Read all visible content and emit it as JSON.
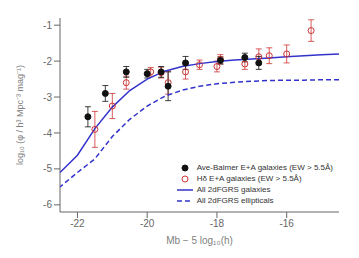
{
  "chart_data": {
    "type": "scatter",
    "xlabel": "Mb − 5 log₁₀(h)",
    "ylabel": "log₁₀ (φ / h³ Mpc⁻³ mag⁻¹)",
    "xlim": [
      -22.5,
      -14.5
    ],
    "xticks": [
      -16,
      -18,
      -20,
      -22
    ],
    "ylim": [
      -6.2,
      -0.8
    ],
    "yticks": [
      -6,
      -5,
      -4,
      -3,
      -2,
      -1
    ],
    "grid": false,
    "legend": "lower right",
    "series": [
      {
        "name": "Ave-Balmer E+A galaxies (EW > 5.5Å)",
        "type": "scatter",
        "color": "#111111",
        "marker": "circle",
        "x": [
          -16.8,
          -17.2,
          -17.9,
          -18.9,
          -19.4,
          -19.6,
          -20.0,
          -20.6,
          -21.2,
          -21.7
        ],
        "values": [
          -2.05,
          -1.9,
          -1.98,
          -2.05,
          -2.7,
          -2.3,
          -2.35,
          -2.3,
          -2.9,
          -3.55
        ],
        "yerr_lo": [
          0.18,
          0.12,
          0.1,
          0.18,
          0.4,
          0.15,
          0.12,
          0.15,
          0.22,
          0.28
        ],
        "yerr_hi": [
          0.18,
          0.12,
          0.1,
          0.18,
          0.4,
          0.15,
          0.12,
          0.15,
          0.22,
          0.28
        ]
      },
      {
        "name": "Hδ E+A galaxies (EW > 5.5Å)",
        "type": "scatter",
        "color": "#cc3333",
        "marker": "open_circle",
        "x": [
          -15.3,
          -16.0,
          -16.5,
          -16.8,
          -17.2,
          -17.9,
          -18.0,
          -18.5,
          -18.9,
          -19.4,
          -19.6,
          -19.9,
          -20.6,
          -21.0,
          -21.5
        ],
        "values": [
          -1.15,
          -1.8,
          -1.85,
          -1.88,
          -2.08,
          -1.95,
          -2.15,
          -2.1,
          -2.3,
          -2.6,
          -2.32,
          -2.3,
          -2.6,
          -3.25,
          -3.9
        ],
        "yerr_lo": [
          0.3,
          0.25,
          0.22,
          0.22,
          0.15,
          0.13,
          0.15,
          0.13,
          0.2,
          0.32,
          0.15,
          0.12,
          0.18,
          0.35,
          0.5
        ],
        "yerr_hi": [
          0.3,
          0.25,
          0.22,
          0.22,
          0.15,
          0.13,
          0.15,
          0.13,
          0.2,
          0.32,
          0.15,
          0.12,
          0.18,
          0.35,
          0.5
        ]
      },
      {
        "name": "All 2dFGRS galaxies",
        "type": "line",
        "color": "#3333cc",
        "line_style": "solid",
        "x": [
          -14.5,
          -15.0,
          -15.5,
          -16.0,
          -16.5,
          -17.0,
          -17.5,
          -18.0,
          -18.5,
          -19.0,
          -19.5,
          -20.0,
          -20.5,
          -21.0,
          -21.5,
          -22.0,
          -22.5
        ],
        "values": [
          -1.8,
          -1.82,
          -1.85,
          -1.88,
          -1.91,
          -1.94,
          -1.97,
          -2.01,
          -2.07,
          -2.15,
          -2.28,
          -2.5,
          -2.82,
          -3.28,
          -3.88,
          -4.62,
          -5.1
        ]
      },
      {
        "name": "All 2dFGRS ellipticals",
        "type": "line",
        "color": "#3333cc",
        "line_style": "dashed",
        "x": [
          -14.5,
          -15.0,
          -15.5,
          -16.0,
          -16.5,
          -17.0,
          -17.5,
          -18.0,
          -18.5,
          -19.0,
          -19.5,
          -20.0,
          -20.5,
          -21.0,
          -21.5,
          -22.0,
          -22.5
        ],
        "values": [
          -2.52,
          -2.52,
          -2.53,
          -2.53,
          -2.54,
          -2.56,
          -2.59,
          -2.63,
          -2.7,
          -2.81,
          -2.98,
          -3.25,
          -3.62,
          -4.1,
          -4.72,
          -5.1,
          -5.5
        ]
      }
    ]
  }
}
